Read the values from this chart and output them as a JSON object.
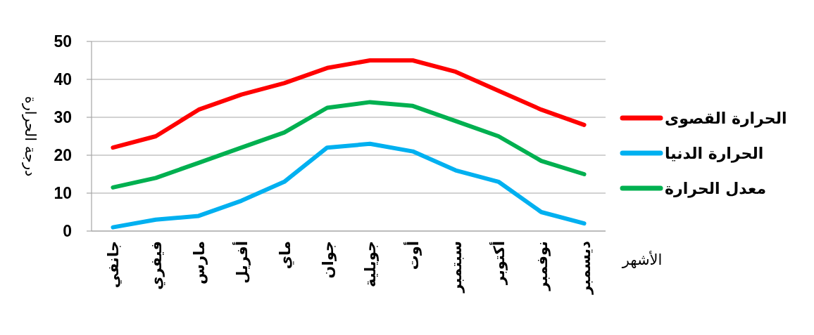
{
  "chart_data": {
    "type": "line",
    "xlabel": "الأشهر",
    "ylabel": "درجة الحرارة",
    "categories": [
      "جانفي",
      "فيفري",
      "مارس",
      "أفريل",
      "ماي",
      "جوان",
      "جويلية",
      "أوت",
      "سبتمبر",
      "أكتوبر",
      "نوفمبر",
      "ديسمبر"
    ],
    "series": [
      {
        "name": "الحرارة القصوى",
        "color": "#ff0000",
        "values": [
          22,
          25,
          32,
          36,
          39,
          43,
          45,
          45,
          42,
          37,
          32,
          28
        ]
      },
      {
        "name": "الحرارة الدنيا",
        "color": "#00b0f0",
        "values": [
          1,
          3,
          4,
          8,
          13,
          22,
          23,
          21,
          16,
          13,
          5,
          2
        ]
      },
      {
        "name": "معدل الحرارة",
        "color": "#00b050",
        "values": [
          11.5,
          14,
          18,
          22,
          26,
          32.5,
          34,
          33,
          29,
          25,
          18.5,
          15
        ]
      }
    ],
    "ylim": [
      0,
      50
    ],
    "yticks": [
      0,
      10,
      20,
      30,
      40,
      50
    ],
    "grid": "y",
    "legend": "right"
  }
}
